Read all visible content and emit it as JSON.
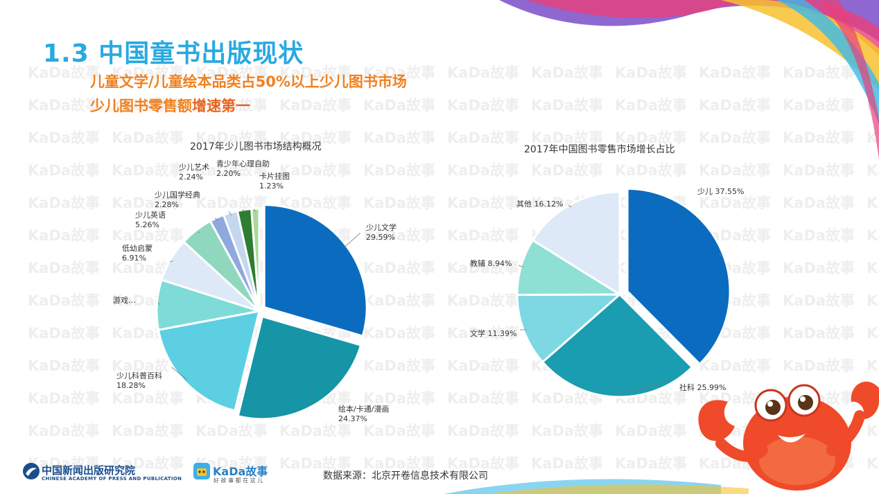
{
  "header": {
    "title": "1.3 中国童书出版现状",
    "subtitle_line1": "儿童文学/儿童绘本品类占50%以上少儿图书市场",
    "subtitle_line2_prefix": "少儿图书零售额",
    "subtitle_line2_emphasis": "增速第一"
  },
  "watermark_text": "KaDa故事",
  "footer": {
    "source": "数据来源：北京开卷信息技术有限公司",
    "logo1_cn": "中国新闻出版研究院",
    "logo1_en": "CHINESE ACADEMY OF PRESS AND PUBLICATION",
    "logo2_name": "KaDa故事",
    "logo2_tag": "好 故 事 都 在 这 儿"
  },
  "colors": {
    "title": "#29a9e0",
    "subtitle": "#f0801e"
  },
  "chart_data": [
    {
      "type": "pie",
      "title": "2017年少儿图书市场结构概况",
      "slices": [
        {
          "label": "少儿文学",
          "value": 29.59,
          "display": "29.59%",
          "color": "#0b6cbf"
        },
        {
          "label": "绘本/卡通/漫画",
          "value": 24.37,
          "display": "24.37%",
          "color": "#1695a6"
        },
        {
          "label": "少儿科普百科",
          "value": 18.28,
          "display": "18.28%",
          "color": "#5ccfe2"
        },
        {
          "label": "游戏…",
          "value": 7.89,
          "display": "",
          "color": "#7fdbd8"
        },
        {
          "label": "低幼启蒙",
          "value": 6.91,
          "display": "6.91%",
          "color": "#dde9f6"
        },
        {
          "label": "少儿英语",
          "value": 5.26,
          "display": "5.26%",
          "color": "#90d8bd"
        },
        {
          "label": "少儿国学经典",
          "value": 2.28,
          "display": "2.28%",
          "color": "#8fa9de"
        },
        {
          "label": "少儿艺术",
          "value": 2.24,
          "display": "2.24%",
          "color": "#c3d7ef"
        },
        {
          "label": "青少年心理自助",
          "value": 2.2,
          "display": "2.20%",
          "color": "#2e7d32"
        },
        {
          "label": "卡片挂图",
          "value": 1.23,
          "display": "1.23%",
          "color": "#a9d99a"
        }
      ]
    },
    {
      "type": "pie",
      "title": "2017年中国图书零售市场增长占比",
      "slices": [
        {
          "label": "少儿",
          "value": 37.55,
          "display": "37.55%",
          "color": "#0b6cbf"
        },
        {
          "label": "社科",
          "value": 25.99,
          "display": "25.99%",
          "color": "#1a9db0"
        },
        {
          "label": "文学",
          "value": 11.39,
          "display": "11.39%",
          "color": "#7dd8e4"
        },
        {
          "label": "教辅",
          "value": 8.94,
          "display": "8.94%",
          "color": "#8fe0d4"
        },
        {
          "label": "其他",
          "value": 16.12,
          "display": "16.12%",
          "color": "#dde9f6"
        }
      ]
    }
  ]
}
